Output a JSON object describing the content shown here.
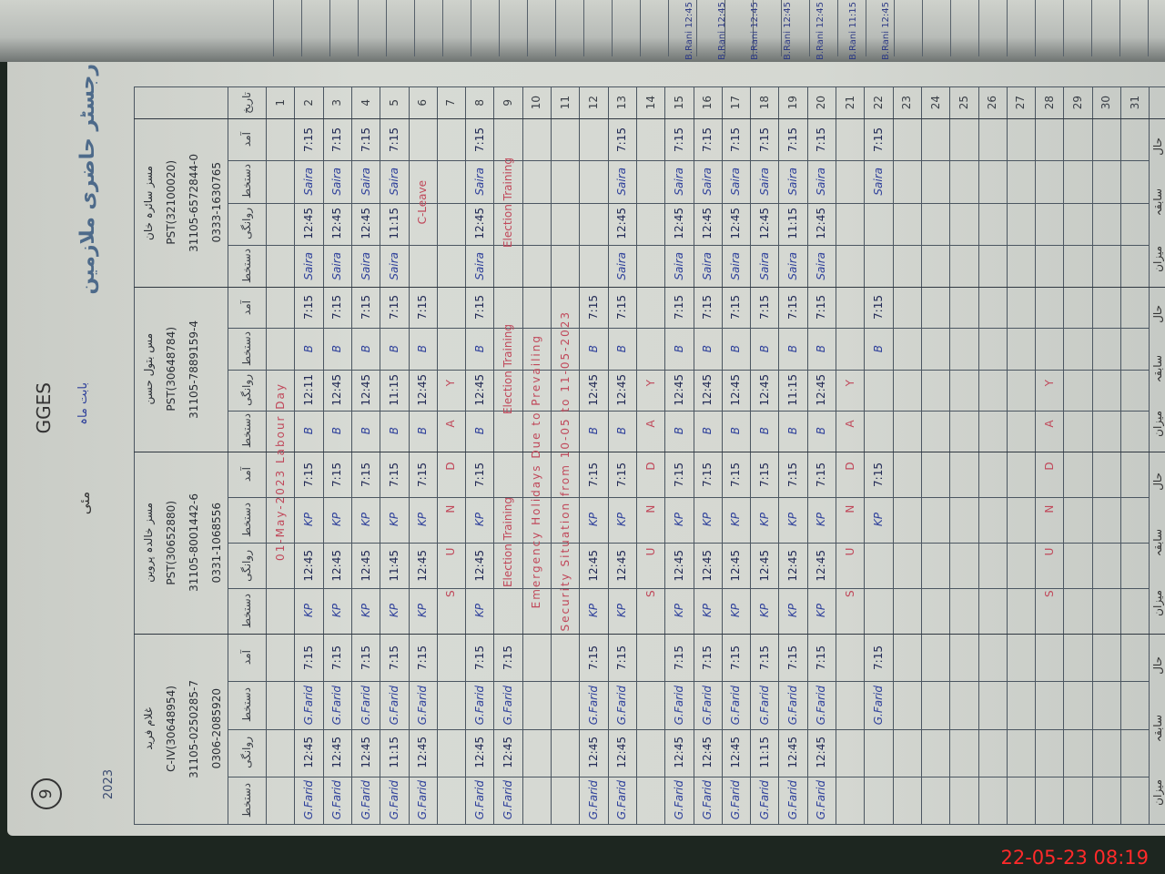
{
  "page_header": {
    "page_number": "9",
    "year_mark": "2023",
    "title": "رجسٹر حاضری ملازمین",
    "school": "GGES",
    "month_label": "بابت ماہ",
    "month": "مئی"
  },
  "column_headers": {
    "date": "تاریخ",
    "sub_rows": [
      "آمد",
      "دستخط",
      "روانگی",
      "دستخط"
    ]
  },
  "employees": [
    {
      "name": "مسز سائرہ خان",
      "post": "PST(32100020)",
      "cnic": "31105-6572844-0",
      "phone": "0333-1630765"
    },
    {
      "name": "مس بتول حسن",
      "post": "PST(30648784)",
      "cnic": "31105-7889159-4",
      "phone": ""
    },
    {
      "name": "مسز خالدہ پروین",
      "post": "PST(30652880)",
      "cnic": "31105-8001442-6",
      "phone": "0331-1068556"
    },
    {
      "name": "غلام فرید",
      "post": "C-IV(30648954)",
      "cnic": "31105-0250285-7",
      "phone": "0306-2085920"
    }
  ],
  "summary_labels": [
    "حال",
    "سابقہ",
    "میزان"
  ],
  "register": {
    "days": [
      {
        "day": "1",
        "note": "01-May-2023  Labour Day"
      },
      {
        "day": "2",
        "entries": [
          [
            "7:15",
            "Saira",
            "12:45",
            "Saira"
          ],
          [
            "7:15",
            "B",
            "12:11",
            "B"
          ],
          [
            "7:15",
            "KP",
            "12:45",
            "KP"
          ],
          [
            "7:15",
            "G.Farid",
            "12:45",
            "G.Farid"
          ]
        ]
      },
      {
        "day": "3",
        "entries": [
          [
            "7:15",
            "Saira",
            "12:45",
            "Saira"
          ],
          [
            "7:15",
            "B",
            "12:45",
            "B"
          ],
          [
            "7:15",
            "KP",
            "12:45",
            "KP"
          ],
          [
            "7:15",
            "G.Farid",
            "12:45",
            "G.Farid"
          ]
        ]
      },
      {
        "day": "4",
        "entries": [
          [
            "7:15",
            "Saira",
            "12:45",
            "Saira"
          ],
          [
            "7:15",
            "B",
            "12:45",
            "B"
          ],
          [
            "7:15",
            "KP",
            "12:45",
            "KP"
          ],
          [
            "7:15",
            "G.Farid",
            "12:45",
            "G.Farid"
          ]
        ]
      },
      {
        "day": "5",
        "entries": [
          [
            "7:15",
            "Saira",
            "11:15",
            "Saira"
          ],
          [
            "7:15",
            "B",
            "11:15",
            "B"
          ],
          [
            "7:15",
            "KP",
            "11:45",
            "KP"
          ],
          [
            "7:15",
            "G.Farid",
            "11:15",
            "G.Farid"
          ]
        ]
      },
      {
        "day": "6",
        "entries": [
          "C-Leave",
          [
            "7:15",
            "B",
            "12:45",
            "B"
          ],
          [
            "7:15",
            "KP",
            "12:45",
            "KP"
          ],
          [
            "7:15",
            "G.Farid",
            "12:45",
            "G.Farid"
          ]
        ]
      },
      {
        "day": "7",
        "sunday": "SUNDAY"
      },
      {
        "day": "8",
        "entries": [
          [
            "7:15",
            "Saira",
            "12:45",
            "Saira"
          ],
          [
            "7:15",
            "B",
            "12:45",
            "B"
          ],
          [
            "7:15",
            "KP",
            "12:45",
            "KP"
          ],
          [
            "7:15",
            "G.Farid",
            "12:45",
            "G.Farid"
          ]
        ]
      },
      {
        "day": "9",
        "entries": [
          "Election Training",
          "Election Training",
          "Election Training",
          [
            "7:15",
            "G.Farid",
            "12:45",
            "G.Farid"
          ]
        ]
      },
      {
        "day": "10",
        "note": "Emergency Holidays Due to Prevailing"
      },
      {
        "day": "11",
        "note": "Security Situation from 10-05 to 11-05-2023"
      },
      {
        "day": "12",
        "entries": [
          [],
          [
            "7:15",
            "B",
            "12:45",
            "B"
          ],
          [
            "7:15",
            "KP",
            "12:45",
            "KP"
          ],
          [
            "7:15",
            "G.Farid",
            "12:45",
            "G.Farid"
          ]
        ]
      },
      {
        "day": "13",
        "entries": [
          [
            "7:15",
            "Saira",
            "12:45",
            "Saira"
          ],
          [
            "7:15",
            "B",
            "12:45",
            "B"
          ],
          [
            "7:15",
            "KP",
            "12:45",
            "KP"
          ],
          [
            "7:15",
            "G.Farid",
            "12:45",
            "G.Farid"
          ]
        ]
      },
      {
        "day": "14",
        "sunday": "SUNDAY"
      },
      {
        "day": "15",
        "entries": [
          [
            "7:15",
            "Saira",
            "12:45",
            "Saira"
          ],
          [
            "7:15",
            "B",
            "12:45",
            "B"
          ],
          [
            "7:15",
            "KP",
            "12:45",
            "KP"
          ],
          [
            "7:15",
            "G.Farid",
            "12:45",
            "G.Farid"
          ]
        ]
      },
      {
        "day": "16",
        "entries": [
          [
            "7:15",
            "Saira",
            "12:45",
            "Saira"
          ],
          [
            "7:15",
            "B",
            "12:45",
            "B"
          ],
          [
            "7:15",
            "KP",
            "12:45",
            "KP"
          ],
          [
            "7:15",
            "G.Farid",
            "12:45",
            "G.Farid"
          ]
        ]
      },
      {
        "day": "17",
        "entries": [
          [
            "7:15",
            "Saira",
            "12:45",
            "Saira"
          ],
          [
            "7:15",
            "B",
            "12:45",
            "B"
          ],
          [
            "7:15",
            "KP",
            "12:45",
            "KP"
          ],
          [
            "7:15",
            "G.Farid",
            "12:45",
            "G.Farid"
          ]
        ]
      },
      {
        "day": "18",
        "entries": [
          [
            "7:15",
            "Saira",
            "12:45",
            "Saira"
          ],
          [
            "7:15",
            "B",
            "12:45",
            "B"
          ],
          [
            "7:15",
            "KP",
            "12:45",
            "KP"
          ],
          [
            "7:15",
            "G.Farid",
            "11:15",
            "G.Farid"
          ]
        ]
      },
      {
        "day": "19",
        "entries": [
          [
            "7:15",
            "Saira",
            "11:15",
            "Saira"
          ],
          [
            "7:15",
            "B",
            "11:15",
            "B"
          ],
          [
            "7:15",
            "KP",
            "12:45",
            "KP"
          ],
          [
            "7:15",
            "G.Farid",
            "12:45",
            "G.Farid"
          ]
        ]
      },
      {
        "day": "20",
        "entries": [
          [
            "7:15",
            "Saira",
            "12:45",
            "Saira"
          ],
          [
            "7:15",
            "B",
            "12:45",
            "B"
          ],
          [
            "7:15",
            "KP",
            "12:45",
            "KP"
          ],
          [
            "7:15",
            "G.Farid",
            "12:45",
            "G.Farid"
          ]
        ]
      },
      {
        "day": "21",
        "sunday": "SUNDAY"
      },
      {
        "day": "22",
        "entries": [
          [
            "7:15",
            "Saira",
            "",
            ""
          ],
          [
            "7:15",
            "B",
            "",
            ""
          ],
          [
            "7:15",
            "KP",
            "",
            ""
          ],
          [
            "7:15",
            "G.Farid",
            "",
            ""
          ]
        ]
      },
      {
        "day": "23"
      },
      {
        "day": "24"
      },
      {
        "day": "25"
      },
      {
        "day": "26"
      },
      {
        "day": "27"
      },
      {
        "day": "28",
        "sunday": "SUNDAY"
      },
      {
        "day": "29"
      },
      {
        "day": "30"
      },
      {
        "day": "31"
      }
    ]
  },
  "facing_page_entries": [
    "B.Rani 12:45",
    "B.Rani 12:45",
    "B.Rani 12:45",
    "B.Rani 12:45",
    "B.Rani 12:45",
    "B.Rani 11:15",
    "B.Rani 12:45"
  ],
  "camera_timestamp": "22-05-23  08:19",
  "colors": {
    "ink_blue": "#2d3f9a",
    "ink_red": "#c0485a",
    "timestamp_red": "#ff2a2a",
    "paper": "#d5d8d2"
  }
}
